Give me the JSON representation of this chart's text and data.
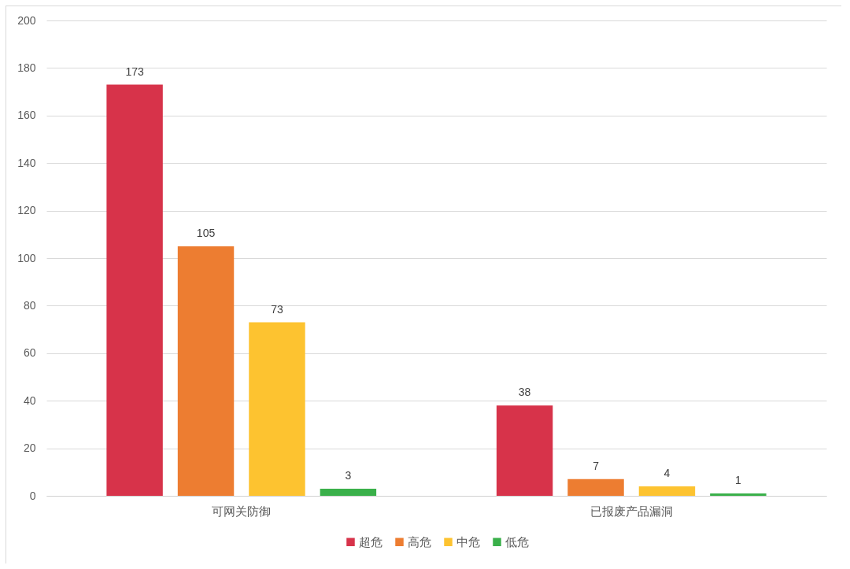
{
  "chart_data": {
    "type": "bar",
    "categories": [
      "可网关防御",
      "已报废产品漏洞"
    ],
    "series": [
      {
        "name": "超危",
        "color": "#d7334a",
        "values": [
          173,
          38
        ]
      },
      {
        "name": "高危",
        "color": "#ed7d31",
        "values": [
          105,
          7
        ]
      },
      {
        "name": "中危",
        "color": "#fdc330",
        "values": [
          73,
          4
        ]
      },
      {
        "name": "低危",
        "color": "#3ab04a",
        "values": [
          3,
          1
        ]
      }
    ],
    "ylim": [
      0,
      200
    ],
    "yticks": [
      0,
      20,
      40,
      60,
      80,
      100,
      120,
      140,
      160,
      180,
      200
    ],
    "grid": "y",
    "data_labels": true,
    "legend": "bottom"
  }
}
